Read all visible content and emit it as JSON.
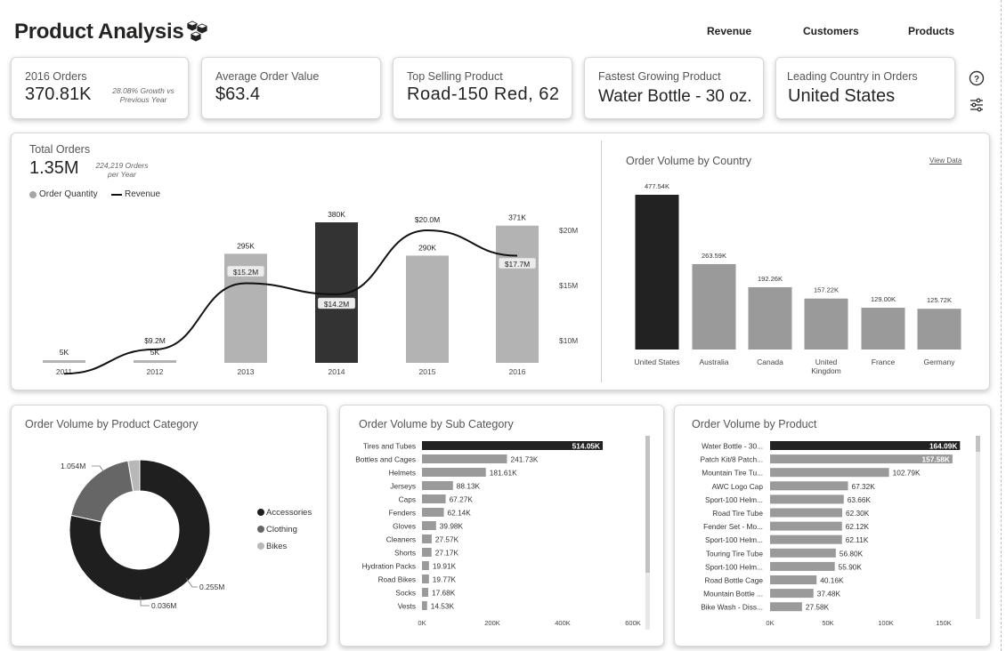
{
  "page": {
    "title": "Product Analysis",
    "nav": [
      "Revenue",
      "Customers",
      "Products"
    ]
  },
  "kpis": {
    "orders_2016": {
      "label": "2016 Orders",
      "value": "370.81K",
      "note_line1": "28.08% Growth vs",
      "note_line2": "Previous Year"
    },
    "avg_order": {
      "label": "Average Order Value",
      "value": "$63.4"
    },
    "top_product": {
      "label": "Top Selling Product",
      "value": "Road-150 Red, 62"
    },
    "fastest_growing": {
      "label": "Fastest Growing Product",
      "value": "Water Bottle - 30 oz."
    },
    "leading_country": {
      "label": "Leading Country in Orders",
      "value": "United States"
    }
  },
  "icons": {
    "help": "help-circle-icon",
    "filter": "sliders-icon",
    "logo": "cubes-icon"
  },
  "colors": {
    "black_bar": "#222222",
    "dark_bar": "#333333",
    "mid_bar": "#9a9a9a",
    "light_bar": "#b3b3b3",
    "slice_accessories": "#1f1f1f",
    "slice_clothing": "#666666",
    "slice_bikes": "#b8b8b8"
  },
  "charts": {
    "total_orders": {
      "title": "Total Orders",
      "value": "1.35M",
      "note_line1": "224,219 Orders",
      "note_line2": "per Year",
      "legend_quantity": "Order Quantity",
      "legend_revenue": "Revenue"
    },
    "country": {
      "title": "Order Volume by Country",
      "view_data": "View Data"
    },
    "category": {
      "title": "Order Volume by Product Category"
    },
    "subcategory": {
      "title": "Order Volume by Sub Category"
    },
    "product": {
      "title": "Order Volume by Product"
    }
  },
  "chart_data": [
    {
      "type": "bar",
      "title": "Total Orders",
      "categories": [
        "2011",
        "2012",
        "2013",
        "2014",
        "2015",
        "2016"
      ],
      "series": [
        {
          "name": "Order Quantity",
          "values": [
            5,
            5,
            295,
            380,
            290,
            371
          ],
          "labels": [
            "5K",
            "5K",
            "295K",
            "380K",
            "290K",
            "371K"
          ]
        },
        {
          "name": "Revenue",
          "type": "line",
          "values": [
            7.0,
            9.2,
            15.2,
            14.2,
            20.0,
            17.7
          ],
          "labels": [
            "",
            "$9.2M",
            "$15.2M",
            "$14.2M",
            "$20.0M",
            "$17.7M"
          ]
        }
      ],
      "y2_ticks": [
        "$10M",
        "$15M",
        "$20M"
      ],
      "y2_tick_values": [
        10,
        15,
        20
      ]
    },
    {
      "type": "bar",
      "title": "Order Volume by Country",
      "categories": [
        "United States",
        "Australia",
        "Canada",
        "United Kingdom",
        "France",
        "Germany"
      ],
      "category_lines": [
        [
          "United States"
        ],
        [
          "Australia"
        ],
        [
          "Canada"
        ],
        [
          "United",
          "Kingdom"
        ],
        [
          "France"
        ],
        [
          "Germany"
        ]
      ],
      "values": [
        477.54,
        263.59,
        192.26,
        157.22,
        129.0,
        125.72
      ],
      "labels": [
        "477.54K",
        "263.59K",
        "192.26K",
        "157.22K",
        "129.00K",
        "125.72K"
      ]
    },
    {
      "type": "pie",
      "title": "Order Volume by Product Category",
      "categories": [
        "Accessories",
        "Clothing",
        "Bikes"
      ],
      "values": [
        1.054,
        0.255,
        0.036
      ],
      "labels": [
        "1.054M",
        "0.255M",
        "0.036M"
      ]
    },
    {
      "type": "bar",
      "orientation": "horizontal",
      "title": "Order Volume by Sub Category",
      "categories": [
        "Tires and Tubes",
        "Bottles and Cages",
        "Helmets",
        "Jerseys",
        "Caps",
        "Fenders",
        "Gloves",
        "Cleaners",
        "Shorts",
        "Hydration Packs",
        "Road Bikes",
        "Socks",
        "Vests"
      ],
      "values": [
        514.05,
        241.73,
        181.61,
        88.13,
        67.27,
        62.14,
        39.98,
        27.57,
        27.17,
        19.91,
        19.77,
        17.68,
        14.53
      ],
      "labels": [
        "514.05K",
        "241.73K",
        "181.61K",
        "88.13K",
        "67.27K",
        "62.14K",
        "39.98K",
        "27.57K",
        "27.17K",
        "19.91K",
        "19.77K",
        "17.68K",
        "14.53K"
      ],
      "xlim": [
        0,
        600
      ],
      "x_ticks": [
        "0K",
        "200K",
        "400K",
        "600K"
      ]
    },
    {
      "type": "bar",
      "orientation": "horizontal",
      "title": "Order Volume by Product",
      "categories": [
        "Water Bottle - 30...",
        "Patch Kit/8 Patch...",
        "Mountain Tire Tu...",
        "AWC Logo Cap",
        "Sport-100 Helm...",
        "Road Tire Tube",
        "Fender Set - Mo...",
        "Sport-100 Helm...",
        "Touring Tire Tube",
        "Sport-100 Helm...",
        "Road Bottle Cage",
        "Mountain Bottle ...",
        "Bike Wash - Diss..."
      ],
      "values": [
        164.09,
        157.58,
        102.79,
        67.32,
        63.66,
        62.3,
        62.12,
        62.11,
        56.8,
        55.9,
        40.16,
        37.48,
        27.58
      ],
      "labels": [
        "164.09K",
        "157.58K",
        "102.79K",
        "67.32K",
        "63.66K",
        "62.30K",
        "62.12K",
        "62.11K",
        "56.80K",
        "55.90K",
        "40.16K",
        "37.48K",
        "27.58K"
      ],
      "xlim": [
        0,
        165
      ],
      "x_ticks": [
        "0K",
        "50K",
        "100K",
        "150K"
      ],
      "x_tick_values": [
        0,
        50,
        100,
        150
      ]
    }
  ]
}
